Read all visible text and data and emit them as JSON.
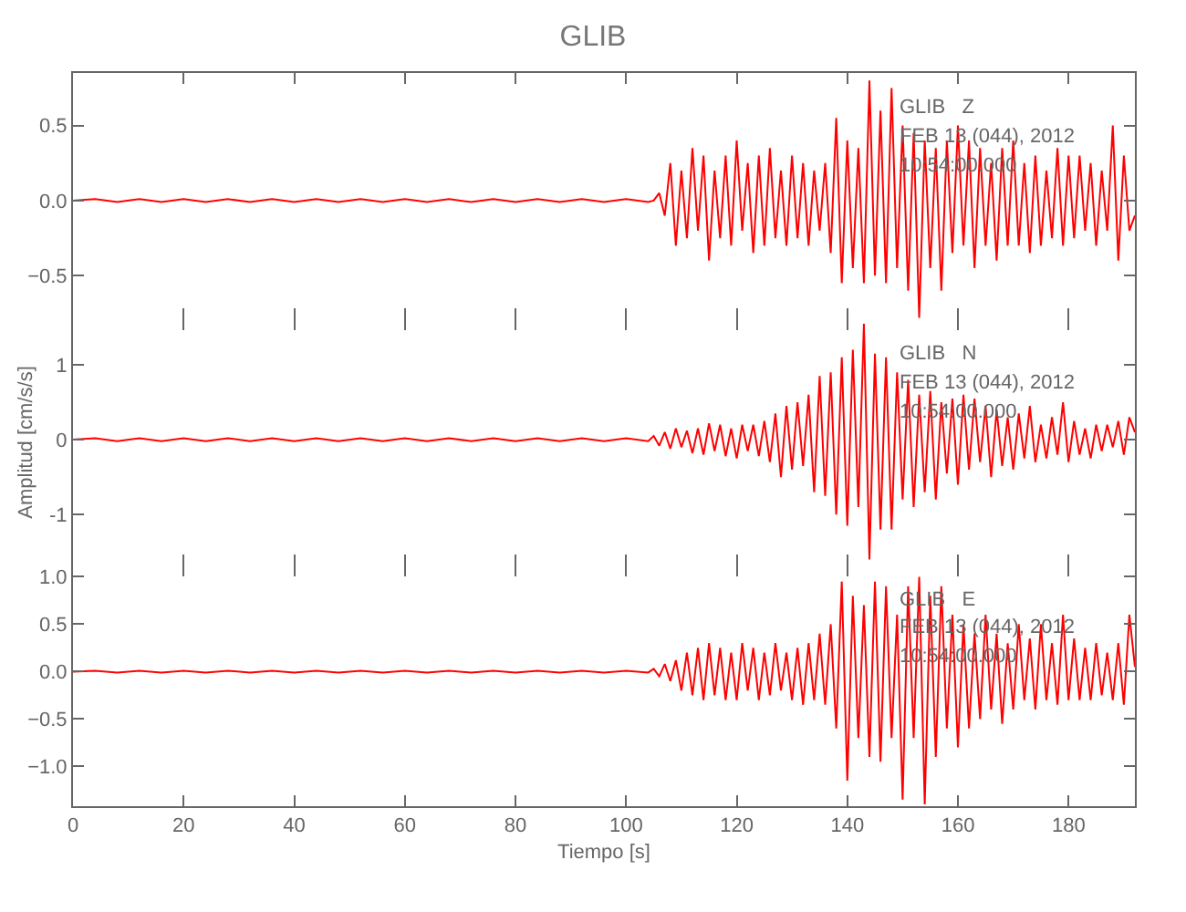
{
  "chart_data": [
    {
      "type": "line",
      "title": "GLIB",
      "annotations": [
        "GLIB   Z",
        "FEB 13 (044), 2012",
        "10:54:00.000"
      ],
      "tick_labels": "y",
      "x": [
        0,
        4,
        8,
        12,
        16,
        20,
        24,
        28,
        32,
        36,
        40,
        44,
        48,
        52,
        56,
        60,
        64,
        68,
        72,
        76,
        80,
        84,
        88,
        92,
        96,
        100,
        104,
        105,
        106,
        107,
        108,
        109,
        110,
        111,
        112,
        113,
        114,
        115,
        116,
        117,
        118,
        119,
        120,
        121,
        122,
        123,
        124,
        125,
        126,
        127,
        128,
        129,
        130,
        131,
        132,
        133,
        134,
        135,
        136,
        137,
        138,
        139,
        140,
        141,
        142,
        143,
        144,
        145,
        146,
        147,
        148,
        149,
        150,
        151,
        152,
        153,
        154,
        155,
        156,
        157,
        158,
        159,
        160,
        161,
        162,
        163,
        164,
        165,
        166,
        167,
        168,
        169,
        170,
        171,
        172,
        173,
        174,
        175,
        176,
        177,
        178,
        179,
        180,
        181,
        182,
        183,
        184,
        185,
        186,
        187,
        188,
        189,
        190,
        191,
        192
      ],
      "series": [
        {
          "color": "#ff0000",
          "values": [
            0,
            0.01,
            -0.01,
            0.01,
            -0.01,
            0.01,
            -0.01,
            0.01,
            -0.01,
            0.01,
            -0.01,
            0.01,
            -0.01,
            0.01,
            -0.01,
            0.01,
            -0.01,
            0.01,
            -0.01,
            0.01,
            -0.01,
            0.01,
            -0.01,
            0.01,
            -0.01,
            0.01,
            -0.01,
            0,
            0.05,
            -0.1,
            0.25,
            -0.3,
            0.2,
            -0.25,
            0.35,
            -0.2,
            0.3,
            -0.4,
            0.2,
            -0.25,
            0.3,
            -0.3,
            0.4,
            -0.2,
            0.25,
            -0.35,
            0.3,
            -0.3,
            0.35,
            -0.25,
            0.2,
            -0.3,
            0.3,
            -0.25,
            0.25,
            -0.3,
            0.2,
            -0.2,
            0.25,
            -0.35,
            0.55,
            -0.55,
            0.4,
            -0.45,
            0.35,
            -0.55,
            0.8,
            -0.5,
            0.6,
            -0.55,
            0.75,
            -0.45,
            0.5,
            -0.6,
            0.45,
            -0.78,
            0.4,
            -0.45,
            0.35,
            -0.6,
            0.4,
            -0.35,
            0.5,
            -0.3,
            0.4,
            -0.45,
            0.35,
            -0.3,
            0.25,
            -0.4,
            0.35,
            -0.3,
            0.4,
            -0.3,
            0.25,
            -0.35,
            0.3,
            -0.3,
            0.2,
            -0.25,
            0.35,
            -0.3,
            0.3,
            -0.25,
            0.3,
            -0.2,
            0.25,
            -0.3,
            0.2,
            -0.2,
            0.5,
            -0.4,
            0.3,
            -0.2,
            -0.1
          ]
        }
      ],
      "xlim": [
        0,
        192
      ],
      "xticks": [
        0,
        20,
        40,
        60,
        80,
        100,
        120,
        140,
        160,
        180
      ],
      "ylim": [
        -0.79,
        0.85
      ],
      "yticks": [
        {
          "value": -0.5,
          "label": "−0.5"
        },
        {
          "value": 0,
          "label": "0.0"
        },
        {
          "value": 0.5,
          "label": "0.5"
        }
      ]
    },
    {
      "type": "line",
      "ylabel": "Amplitud [cm/s/s]",
      "annotations": [
        "GLIB   N",
        "FEB 13 (044), 2012",
        "10:54:00.000"
      ],
      "tick_labels": "y",
      "x": [
        0,
        4,
        8,
        12,
        16,
        20,
        24,
        28,
        32,
        36,
        40,
        44,
        48,
        52,
        56,
        60,
        64,
        68,
        72,
        76,
        80,
        84,
        88,
        92,
        96,
        100,
        104,
        105,
        106,
        107,
        108,
        109,
        110,
        111,
        112,
        113,
        114,
        115,
        116,
        117,
        118,
        119,
        120,
        121,
        122,
        123,
        124,
        125,
        126,
        127,
        128,
        129,
        130,
        131,
        132,
        133,
        134,
        135,
        136,
        137,
        138,
        139,
        140,
        141,
        142,
        143,
        144,
        145,
        146,
        147,
        148,
        149,
        150,
        151,
        152,
        153,
        154,
        155,
        156,
        157,
        158,
        159,
        160,
        161,
        162,
        163,
        164,
        165,
        166,
        167,
        168,
        169,
        170,
        171,
        172,
        173,
        174,
        175,
        176,
        177,
        178,
        179,
        180,
        181,
        182,
        183,
        184,
        185,
        186,
        187,
        188,
        189,
        190,
        191,
        192
      ],
      "series": [
        {
          "color": "#ff0000",
          "values": [
            0,
            0.02,
            -0.02,
            0.02,
            -0.02,
            0.02,
            -0.02,
            0.02,
            -0.02,
            0.02,
            -0.02,
            0.02,
            -0.02,
            0.02,
            -0.02,
            0.02,
            -0.02,
            0.02,
            -0.02,
            0.02,
            -0.02,
            0.02,
            -0.02,
            0.02,
            -0.02,
            0.02,
            -0.02,
            0.05,
            -0.08,
            0.1,
            -0.12,
            0.15,
            -0.1,
            0.12,
            -0.18,
            0.15,
            -0.2,
            0.22,
            -0.15,
            0.2,
            -0.22,
            0.15,
            -0.25,
            0.2,
            -0.15,
            0.2,
            -0.22,
            0.25,
            -0.3,
            0.35,
            -0.5,
            0.45,
            -0.4,
            0.5,
            -0.35,
            0.6,
            -0.7,
            0.85,
            -0.75,
            0.9,
            -1.0,
            1.1,
            -1.15,
            1.2,
            -0.9,
            1.55,
            -1.6,
            1.15,
            -1.2,
            1.1,
            -1.2,
            0.9,
            -0.8,
            0.8,
            -0.9,
            0.6,
            -0.7,
            0.65,
            -0.8,
            0.5,
            -0.45,
            0.55,
            -0.6,
            0.6,
            -0.4,
            0.55,
            -0.3,
            0.45,
            -0.5,
            0.4,
            -0.35,
            0.3,
            -0.4,
            0.35,
            -0.25,
            0.45,
            -0.3,
            0.2,
            -0.25,
            0.3,
            -0.2,
            0.5,
            -0.3,
            0.25,
            -0.2,
            0.15,
            -0.25,
            0.2,
            -0.15,
            0.2,
            -0.1,
            0.25,
            -0.2,
            0.3,
            0.1
          ]
        }
      ],
      "xlim": [
        0,
        192
      ],
      "xticks": [
        0,
        20,
        40,
        60,
        80,
        100,
        120,
        140,
        160,
        180
      ],
      "ylim": [
        -1.68,
        1.61
      ],
      "yticks": [
        -1,
        0,
        1
      ]
    },
    {
      "type": "line",
      "xlabel": "Tiempo [s]",
      "annotations": [
        "GLIB   E",
        "FEB 13 (044), 2012",
        "10:54:00.000"
      ],
      "x": [
        0,
        4,
        8,
        12,
        16,
        20,
        24,
        28,
        32,
        36,
        40,
        44,
        48,
        52,
        56,
        60,
        64,
        68,
        72,
        76,
        80,
        84,
        88,
        92,
        96,
        100,
        104,
        105,
        106,
        107,
        108,
        109,
        110,
        111,
        112,
        113,
        114,
        115,
        116,
        117,
        118,
        119,
        120,
        121,
        122,
        123,
        124,
        125,
        126,
        127,
        128,
        129,
        130,
        131,
        132,
        133,
        134,
        135,
        136,
        137,
        138,
        139,
        140,
        141,
        142,
        143,
        144,
        145,
        146,
        147,
        148,
        149,
        150,
        151,
        152,
        153,
        154,
        155,
        156,
        157,
        158,
        159,
        160,
        161,
        162,
        163,
        164,
        165,
        166,
        167,
        168,
        169,
        170,
        171,
        172,
        173,
        174,
        175,
        176,
        177,
        178,
        179,
        180,
        181,
        182,
        183,
        184,
        185,
        186,
        187,
        188,
        189,
        190,
        191,
        192
      ],
      "series": [
        {
          "color": "#ff0000",
          "values": [
            0,
            0.01,
            -0.01,
            0.01,
            -0.01,
            0.01,
            -0.01,
            0.01,
            -0.01,
            0.01,
            -0.01,
            0.01,
            -0.01,
            0.01,
            -0.01,
            0.01,
            -0.01,
            0.01,
            -0.01,
            0.01,
            -0.01,
            0.01,
            -0.01,
            0.01,
            -0.01,
            0.01,
            -0.01,
            0.03,
            -0.05,
            0.08,
            -0.1,
            0.12,
            -0.2,
            0.2,
            -0.25,
            0.25,
            -0.3,
            0.3,
            -0.25,
            0.25,
            -0.3,
            0.2,
            -0.3,
            0.3,
            -0.2,
            0.25,
            -0.3,
            0.2,
            -0.25,
            0.3,
            -0.2,
            0.2,
            -0.3,
            0.25,
            -0.35,
            0.3,
            -0.3,
            0.4,
            -0.35,
            0.5,
            -0.6,
            0.95,
            -1.15,
            0.8,
            -0.7,
            0.7,
            -0.9,
            0.95,
            -0.95,
            0.9,
            -0.7,
            0.6,
            -1.35,
            0.9,
            -0.7,
            1.0,
            -1.4,
            0.8,
            -0.9,
            0.9,
            -0.6,
            0.6,
            -0.8,
            0.5,
            -0.6,
            0.4,
            -0.5,
            0.6,
            -0.4,
            0.4,
            -0.55,
            0.3,
            -0.4,
            0.5,
            -0.3,
            0.35,
            -0.4,
            0.5,
            -0.3,
            0.3,
            -0.35,
            0.6,
            -0.3,
            0.35,
            -0.3,
            0.25,
            -0.3,
            0.3,
            -0.25,
            0.2,
            -0.3,
            0.3,
            -0.35,
            0.6,
            0.05
          ]
        }
      ],
      "xlim": [
        0,
        192
      ],
      "xticks": [
        0,
        20,
        40,
        60,
        80,
        100,
        120,
        140,
        160,
        180
      ],
      "ylim": [
        -1.42,
        1.12
      ],
      "yticks": [
        {
          "value": -1,
          "label": "−1.0"
        },
        {
          "value": -0.5,
          "label": "−0.5"
        },
        {
          "value": 0,
          "label": "0.0"
        },
        {
          "value": 0.5,
          "label": "0.5"
        },
        {
          "value": 1,
          "label": "1.0"
        }
      ]
    }
  ]
}
